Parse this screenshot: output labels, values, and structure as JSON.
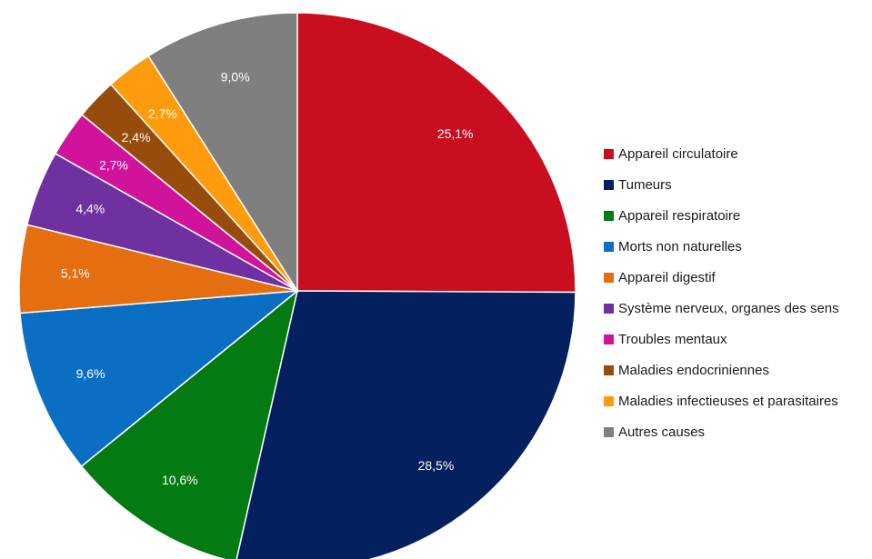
{
  "chart_data": {
    "type": "pie",
    "title": "",
    "start_angle_deg": 0,
    "direction": "clockwise",
    "legend_position": "right",
    "slices": [
      {
        "label": "Appareil circulatoire",
        "value": 25.1,
        "value_label": "25,1%",
        "color": "#C90E1F"
      },
      {
        "label": "Tumeurs",
        "value": 28.5,
        "value_label": "28,5%",
        "color": "#04205E"
      },
      {
        "label": "Appareil respiratoire",
        "value": 10.6,
        "value_label": "10,6%",
        "color": "#037A12"
      },
      {
        "label": "Morts non naturelles",
        "value": 9.6,
        "value_label": "9,6%",
        "color": "#0A6FC2"
      },
      {
        "label": "Appareil digestif",
        "value": 5.1,
        "value_label": "5,1%",
        "color": "#E56E10"
      },
      {
        "label": "Système nerveux, organes des sens",
        "value": 4.4,
        "value_label": "4,4%",
        "color": "#7031A0"
      },
      {
        "label": "Troubles mentaux",
        "value": 2.7,
        "value_label": "2,7%",
        "color": "#D1139C"
      },
      {
        "label": "Maladies endocriniennes",
        "value": 2.4,
        "value_label": "2,4%",
        "color": "#974C0C"
      },
      {
        "label": "Maladies infectieuses et parasitaires",
        "value": 2.7,
        "value_label": "2,7%",
        "color": "#FF9C0E"
      },
      {
        "label": "Autres causes",
        "value": 9.0,
        "value_label": "9,0%",
        "color": "#7F7F7F"
      }
    ]
  }
}
